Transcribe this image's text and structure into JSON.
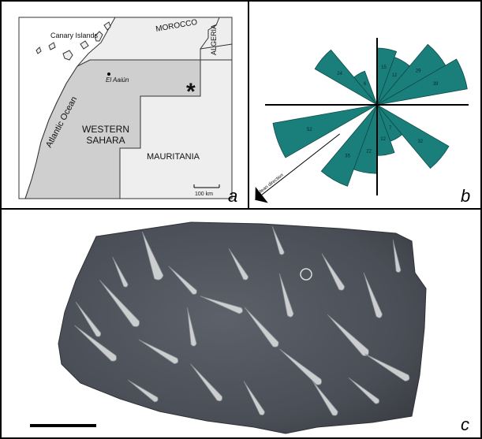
{
  "panels": {
    "a": {
      "letter": "a",
      "labels": {
        "canary": "Canary Islands",
        "morocco": "MOROCCO",
        "algeria": "ALGERIA",
        "atlantic": "Atlantic Ocean",
        "city": "El Aaiún",
        "ws_line1": "WESTERN",
        "ws_line2": "SAHARA",
        "mauritania": "MAURITANIA",
        "scale": "100 km",
        "site_marker": "*"
      },
      "colors": {
        "land": "#eeeeee",
        "western_sahara": "#cfcfcf",
        "sea": "#ffffff"
      }
    },
    "b": {
      "letter": "b",
      "mean_direction_label": "Mean direction",
      "color": "#1a7f7a",
      "chart_data": {
        "type": "rose",
        "sector_width_deg": 20,
        "sectors": [
          {
            "label": "15",
            "azimuth_deg": 0,
            "count": 15
          },
          {
            "label": "12",
            "azimuth_deg": 20,
            "count": 12
          },
          {
            "label": "29",
            "azimuth_deg": 40,
            "count": 29
          },
          {
            "label": "39",
            "azimuth_deg": 60,
            "count": 39
          },
          {
            "label": "32",
            "azimuth_deg": 120,
            "count": 32
          },
          {
            "label": "7",
            "azimuth_deg": 140,
            "count": 7
          },
          {
            "label": "12",
            "azimuth_deg": 160,
            "count": 12
          },
          {
            "label": "22",
            "azimuth_deg": 180,
            "count": 22
          },
          {
            "label": "35",
            "azimuth_deg": 200,
            "count": 35
          },
          {
            "label": "52",
            "azimuth_deg": 240,
            "count": 52
          },
          {
            "label": "24",
            "azimuth_deg": 300,
            "count": 24
          },
          {
            "label": "6",
            "azimuth_deg": 320,
            "count": 6
          }
        ],
        "mean_direction_azimuth_deg": 232
      }
    },
    "c": {
      "letter": "c",
      "photo_colors": {
        "slab": "#555a63",
        "slab_dark": "#3b3f46",
        "fossil": "#d9dbdc",
        "fossil_edge": "#8f949a"
      }
    }
  }
}
